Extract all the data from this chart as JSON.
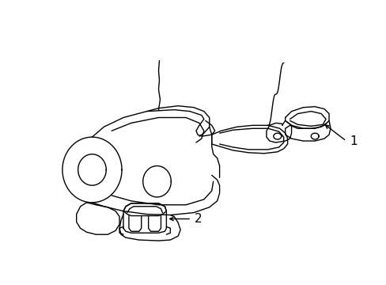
{
  "bg_color": "#ffffff",
  "line_color": "#000000",
  "line_width": 1.0,
  "fig_width": 4.89,
  "fig_height": 3.6,
  "dpi": 100,
  "label1_text": "1",
  "label2_text": "2"
}
